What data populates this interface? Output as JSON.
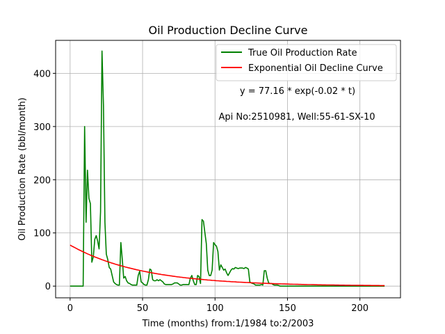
{
  "chart_data": {
    "type": "line",
    "title": "Oil Production Decline Curve",
    "xlabel": "Time (months) from:1/1984 to:2/2003",
    "ylabel": "Oil Production Rate (bbl/month)",
    "xlim": [
      -10,
      228
    ],
    "ylim": [
      -22,
      462
    ],
    "xticks": [
      0,
      50,
      100,
      150,
      200
    ],
    "yticks": [
      0,
      100,
      200,
      300,
      400
    ],
    "grid": true,
    "legend_position": "top-right",
    "annotations": [
      {
        "text": "y = 77.16 * exp(-0.02 * t)"
      },
      {
        "text": "Api No:2510981, Well:55-61-SX-10"
      }
    ],
    "series": [
      {
        "name": "True Oil Production Rate",
        "color": "#008000",
        "x": [
          0,
          1,
          2,
          3,
          4,
          5,
          6,
          7,
          8,
          9,
          10,
          11,
          12,
          13,
          14,
          15,
          16,
          17,
          18,
          19,
          20,
          21,
          22,
          23,
          24,
          25,
          26,
          27,
          28,
          29,
          30,
          31,
          32,
          33,
          34,
          35,
          36,
          37,
          38,
          39,
          40,
          41,
          42,
          43,
          44,
          45,
          46,
          47,
          48,
          49,
          50,
          51,
          52,
          53,
          54,
          55,
          56,
          57,
          58,
          59,
          60,
          61,
          62,
          63,
          64,
          65,
          66,
          67,
          68,
          69,
          70,
          71,
          72,
          73,
          74,
          75,
          76,
          77,
          78,
          79,
          80,
          81,
          82,
          83,
          84,
          85,
          86,
          87,
          88,
          89,
          90,
          91,
          92,
          93,
          94,
          95,
          96,
          97,
          98,
          99,
          100,
          101,
          102,
          103,
          104,
          105,
          106,
          107,
          108,
          109,
          110,
          111,
          112,
          113,
          114,
          115,
          116,
          117,
          118,
          119,
          120,
          121,
          122,
          123,
          124,
          125,
          126,
          127,
          128,
          129,
          130,
          131,
          132,
          133,
          134,
          135,
          136,
          137,
          138,
          139,
          140,
          141,
          142,
          143,
          144,
          145,
          146,
          147,
          148,
          149,
          150,
          155,
          160,
          165,
          170,
          175,
          180,
          185,
          190,
          195,
          200,
          205,
          210,
          215,
          217
        ],
        "y": [
          0,
          0,
          0,
          0,
          0,
          0,
          0,
          0,
          0,
          0,
          300,
          120,
          218,
          165,
          155,
          45,
          55,
          88,
          95,
          85,
          70,
          140,
          442,
          340,
          120,
          60,
          50,
          35,
          32,
          20,
          8,
          5,
          3,
          2,
          2,
          82,
          50,
          15,
          18,
          10,
          6,
          5,
          3,
          2,
          2,
          2,
          2,
          20,
          28,
          8,
          6,
          3,
          2,
          2,
          12,
          32,
          30,
          12,
          10,
          10,
          12,
          10,
          12,
          10,
          8,
          4,
          3,
          3,
          3,
          3,
          3,
          4,
          6,
          6,
          6,
          4,
          2,
          2,
          3,
          3,
          3,
          3,
          3,
          15,
          20,
          10,
          3,
          3,
          20,
          18,
          5,
          125,
          122,
          100,
          80,
          30,
          20,
          20,
          30,
          82,
          78,
          75,
          65,
          30,
          40,
          35,
          30,
          32,
          25,
          20,
          25,
          30,
          33,
          32,
          35,
          34,
          33,
          34,
          34,
          34,
          33,
          35,
          34,
          32,
          8,
          6,
          5,
          4,
          2,
          2,
          2,
          2,
          3,
          2,
          29,
          29,
          15,
          6,
          5,
          5,
          3,
          2,
          2,
          2,
          1,
          0,
          0,
          0,
          0,
          0,
          0,
          0,
          0,
          0,
          0,
          0,
          0,
          0,
          0,
          0,
          0,
          0,
          0,
          0,
          0
        ]
      },
      {
        "name": "Exponential Oil Decline Curve",
        "color": "#ff0000",
        "model": {
          "a": 77.16,
          "b": -0.02
        },
        "x_range": [
          0,
          217
        ]
      }
    ]
  }
}
